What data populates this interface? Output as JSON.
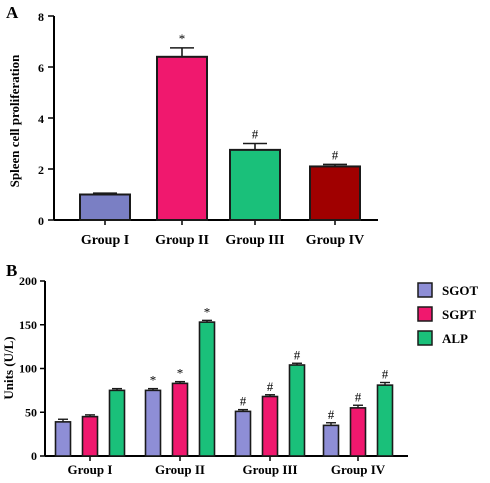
{
  "colors": {
    "axis": "#000000",
    "outline": "#1a1a1a",
    "panelA": [
      "#7a7fc4",
      "#f0186e",
      "#1ac07a",
      "#a00000"
    ],
    "SGOT": "#8e8ed6",
    "SGPT": "#f0186e",
    "ALP": "#1ac07a"
  },
  "chart_data": [
    {
      "type": "bar",
      "panel_label": "A",
      "ylabel": "Spleen cell proliferation",
      "xlabel": "",
      "ylim": [
        0,
        8
      ],
      "yticks": [
        0,
        2,
        4,
        6,
        8
      ],
      "categories": [
        "Group I",
        "Group II",
        "Group III",
        "Group IV"
      ],
      "values": [
        1.0,
        6.4,
        2.75,
        2.1
      ],
      "errors": [
        0.05,
        0.35,
        0.25,
        0.08
      ],
      "annotations": [
        "",
        "*",
        "#",
        "#"
      ]
    },
    {
      "type": "bar",
      "panel_label": "B",
      "ylabel": "Units (U/L)",
      "xlabel": "",
      "ylim": [
        0,
        200
      ],
      "yticks": [
        0,
        50,
        100,
        150,
        200
      ],
      "categories": [
        "Group I",
        "Group II",
        "Group III",
        "Group IV"
      ],
      "series": [
        {
          "name": "SGOT",
          "values": [
            39,
            75,
            51,
            35
          ],
          "errors": [
            3,
            2,
            2,
            3
          ],
          "annotations": [
            "",
            "*",
            "#",
            "#"
          ]
        },
        {
          "name": "SGPT",
          "values": [
            45,
            83,
            68,
            55
          ],
          "errors": [
            2,
            2,
            2,
            3
          ],
          "annotations": [
            "",
            "*",
            "#",
            "#"
          ]
        },
        {
          "name": "ALP",
          "values": [
            75,
            153,
            104,
            81
          ],
          "errors": [
            2,
            2,
            2,
            3
          ],
          "annotations": [
            "",
            "*",
            "#",
            "#"
          ]
        }
      ],
      "legend_position": "right"
    }
  ]
}
